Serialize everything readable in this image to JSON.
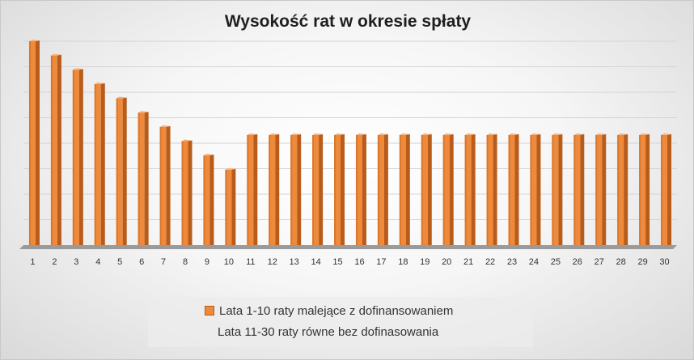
{
  "chart_data": {
    "type": "bar",
    "title": "Wysokość rat w okresie spłaty",
    "xlabel": "",
    "ylabel": "",
    "categories": [
      "1",
      "2",
      "3",
      "4",
      "5",
      "6",
      "7",
      "8",
      "9",
      "10",
      "11",
      "12",
      "13",
      "14",
      "15",
      "16",
      "17",
      "18",
      "19",
      "20",
      "21",
      "22",
      "23",
      "24",
      "25",
      "26",
      "27",
      "28",
      "29",
      "30"
    ],
    "series": [
      {
        "values": [
          100,
          93,
          86,
          79,
          72,
          65,
          58,
          51,
          44,
          37,
          54,
          54,
          54,
          54,
          54,
          54,
          54,
          54,
          54,
          54,
          54,
          54,
          54,
          54,
          54,
          54,
          54,
          54,
          54,
          54
        ]
      }
    ],
    "ylim": [
      0,
      100
    ],
    "grid": true,
    "legend": {
      "position": "bottom",
      "entries": [
        "Lata 1-10 raty malejące z dofinansowaniem",
        "Lata 11-30 raty równe bez dofinasowania"
      ]
    },
    "colors": {
      "bar": "#ef8a3c",
      "bar_side": "#b85c1c",
      "bar_top": "#f6b07a",
      "floor": "#9a9a9a"
    }
  }
}
